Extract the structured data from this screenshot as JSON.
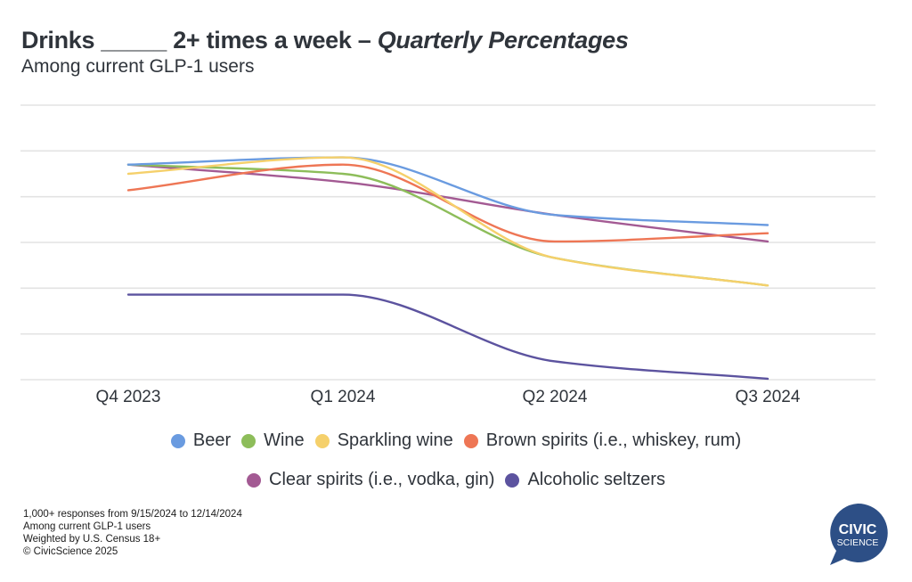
{
  "header": {
    "title_main": "Drinks _____ 2+ times a week – ",
    "title_italic": "Quarterly Percentages",
    "subtitle": "Among current GLP-1 users"
  },
  "chart_data": {
    "type": "line",
    "title": "Drinks _____ 2+ times a week – Quarterly Percentages",
    "subtitle": "Among current GLP-1 users",
    "xlabel": "",
    "ylabel": "",
    "y_tick_labels_shown": false,
    "y_units_note": "Y-axis unlabeled; values estimated in relative percentage units on assumed 0-30 scale",
    "ylim": [
      0,
      30
    ],
    "y_grid_step": 5,
    "grid": true,
    "categories": [
      "Q4 2023",
      "Q1 2024",
      "Q2 2024",
      "Q3 2024"
    ],
    "series": [
      {
        "name": "Beer",
        "color": "#6a9be0",
        "values": [
          23.5,
          24.3,
          18.0,
          16.9
        ]
      },
      {
        "name": "Wine",
        "color": "#8dbd5a",
        "values": [
          23.5,
          22.5,
          13.3,
          10.3
        ]
      },
      {
        "name": "Sparkling wine",
        "color": "#f5d06b",
        "values": [
          22.5,
          24.3,
          13.3,
          10.3
        ]
      },
      {
        "name": "Brown spirits (i.e., whiskey, rum)",
        "color": "#ee7655",
        "values": [
          20.7,
          23.5,
          15.1,
          16.0
        ]
      },
      {
        "name": "Clear spirits (i.e., vodka, gin)",
        "color": "#a35a93",
        "values": [
          23.5,
          21.6,
          18.0,
          15.1
        ]
      },
      {
        "name": "Alcoholic seltzers",
        "color": "#5c539f",
        "values": [
          9.3,
          9.3,
          2.0,
          0.1
        ]
      }
    ],
    "legend_position": "bottom",
    "legend_rows": [
      [
        0,
        1,
        2,
        3
      ],
      [
        4,
        5
      ]
    ]
  },
  "footnote": {
    "lines": [
      "1,000+ responses from 9/15/2024 to 12/14/2024",
      "Among current GLP-1 users",
      "Weighted by U.S. Census 18+",
      "© CivicScience 2025"
    ]
  },
  "logo": {
    "line1": "CIVIC",
    "line2": "SCIENCE",
    "color": "#2d4f86"
  }
}
